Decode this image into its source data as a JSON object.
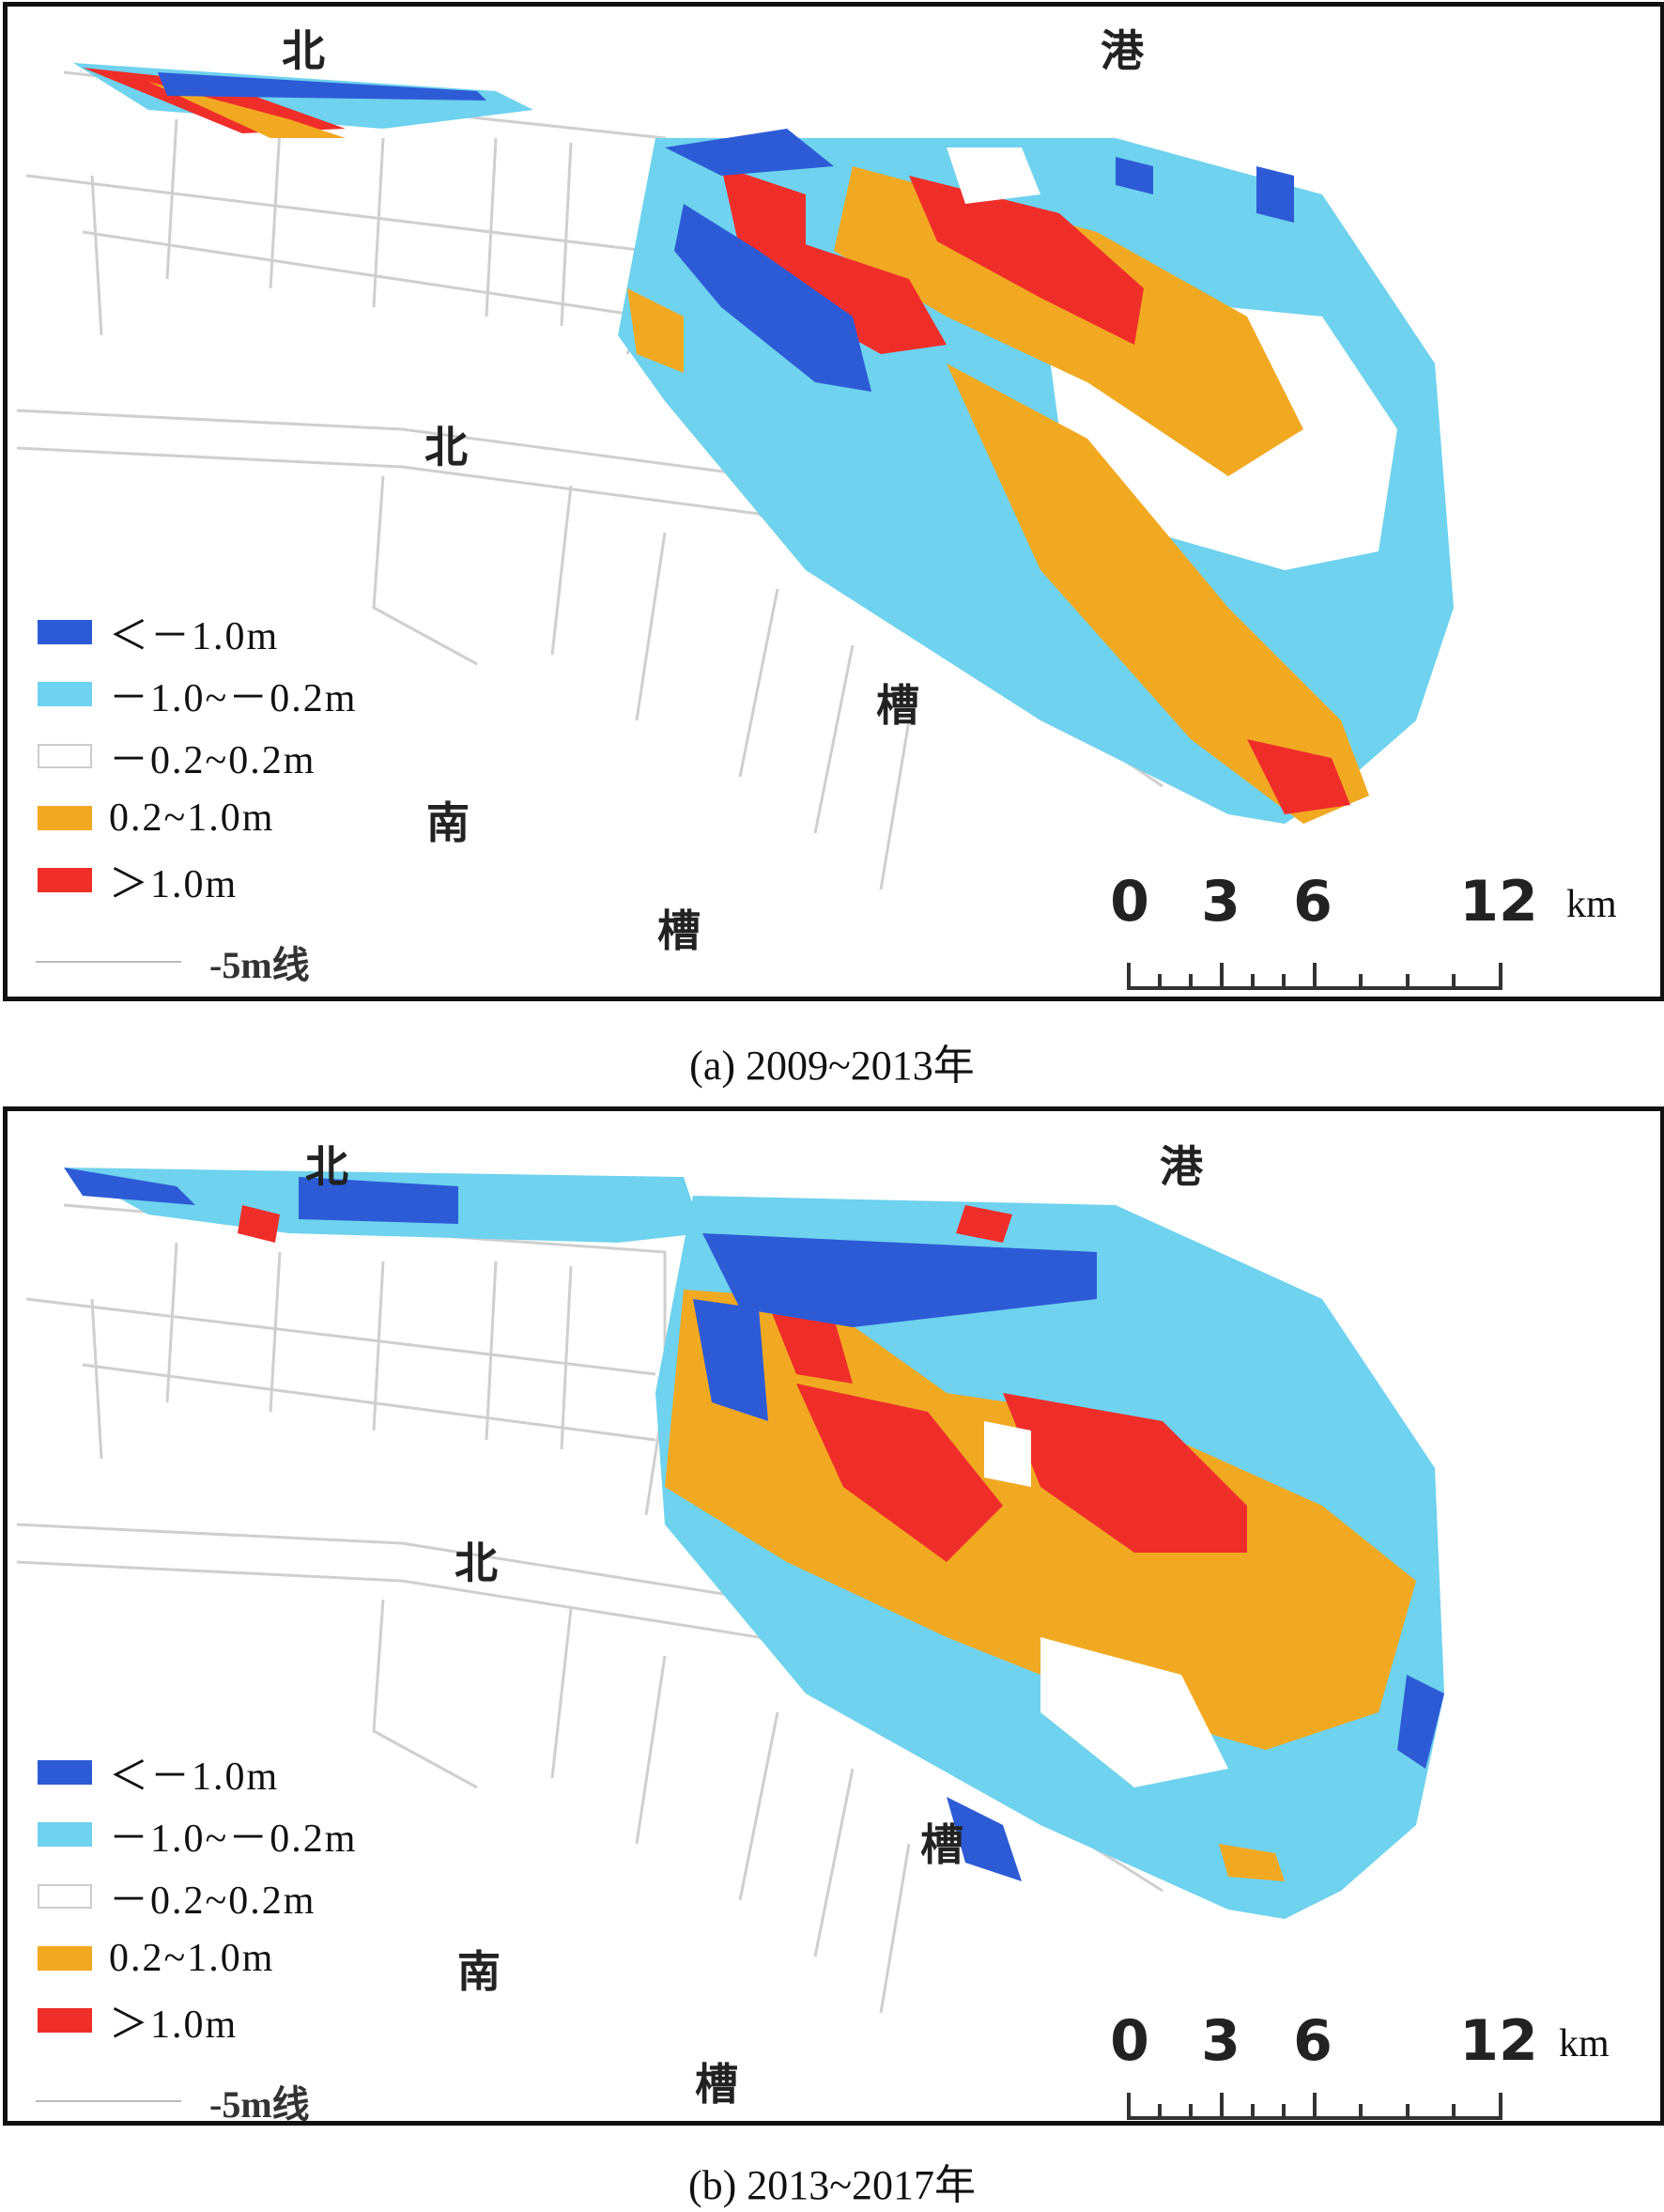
{
  "legend": {
    "items": [
      {
        "label": "＜－1.0m",
        "color": "#2d5bd6"
      },
      {
        "label": "－1.0~－0.2m",
        "color": "#6fd2ee"
      },
      {
        "label": "－0.2~0.2m",
        "color": "#ffffff"
      },
      {
        "label": "0.2~1.0m",
        "color": "#f2a922"
      },
      {
        "label": "＞1.0m",
        "color": "#ef2e2a"
      }
    ],
    "contour_label": "-5m线"
  },
  "places": {
    "bei_top": "北",
    "gang": "港",
    "bei_mid": "北",
    "cao_mid": "槽",
    "nan": "南",
    "cao_bottom": "槽"
  },
  "scale": {
    "ticks": [
      "0",
      "3",
      "6",
      "12"
    ],
    "unit": "km"
  },
  "panels": [
    {
      "caption": "(a) 2009~2013年"
    },
    {
      "caption": "(b) 2013~2017年"
    }
  ]
}
